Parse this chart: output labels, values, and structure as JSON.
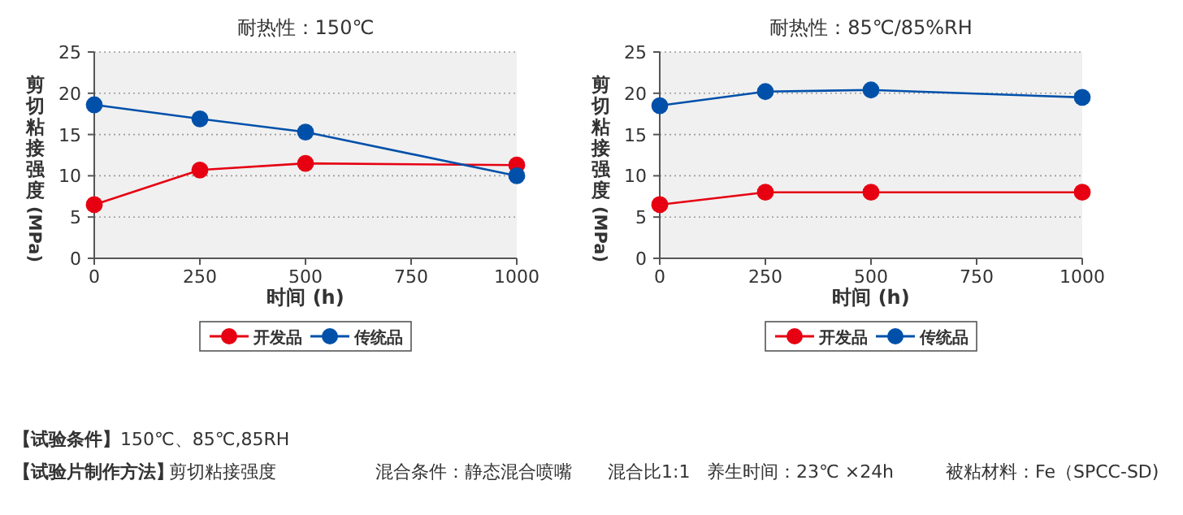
{
  "chart_data": [
    {
      "type": "line",
      "title": "耐热性：150℃",
      "xlabel": "时间 (h)",
      "ylabel": "剪切粘接强度 (MPa)",
      "x": [
        0,
        250,
        500,
        1000
      ],
      "xlim": [
        0,
        1000
      ],
      "xticks": [
        0,
        250,
        500,
        750,
        1000
      ],
      "ylim": [
        0,
        25
      ],
      "yticks": [
        0,
        5,
        10,
        15,
        20,
        25
      ],
      "grid": "y",
      "legend": "bottom",
      "marker": "circle",
      "line_style": "solid",
      "series": [
        {
          "name": "开发品",
          "color": "#e60012",
          "values": [
            6.5,
            10.7,
            11.5,
            11.3
          ]
        },
        {
          "name": "传统品",
          "color": "#0050aa",
          "values": [
            18.6,
            16.9,
            15.3,
            10.0
          ]
        }
      ],
      "annotations": [
        "【试验条件】",
        "150℃、85℃,85RH",
        "【试验片制作方法】",
        "剪切粘接强度",
        "混合条件：静态混合喷嘴",
        "混合比1:1",
        "养生时间：23℃ ×24h",
        "被粘材料：Fe（SPCC-SD)"
      ]
    },
    {
      "type": "line",
      "title": "耐热性：85℃/85%RH",
      "xlabel": "时间 (h)",
      "ylabel": "剪切粘接强度 (MPa)",
      "x": [
        0,
        250,
        500,
        1000
      ],
      "xlim": [
        0,
        1000
      ],
      "xticks": [
        0,
        250,
        500,
        750,
        1000
      ],
      "ylim": [
        0,
        25
      ],
      "yticks": [
        0,
        5,
        10,
        15,
        20,
        25
      ],
      "grid": "y",
      "legend": "bottom",
      "marker": "circle",
      "line_style": "solid",
      "series": [
        {
          "name": "开发品",
          "color": "#e60012",
          "values": [
            6.5,
            8.0,
            8.0,
            8.0
          ]
        },
        {
          "name": "传统品",
          "color": "#0050aa",
          "values": [
            18.5,
            20.2,
            20.4,
            19.5
          ]
        }
      ]
    }
  ]
}
